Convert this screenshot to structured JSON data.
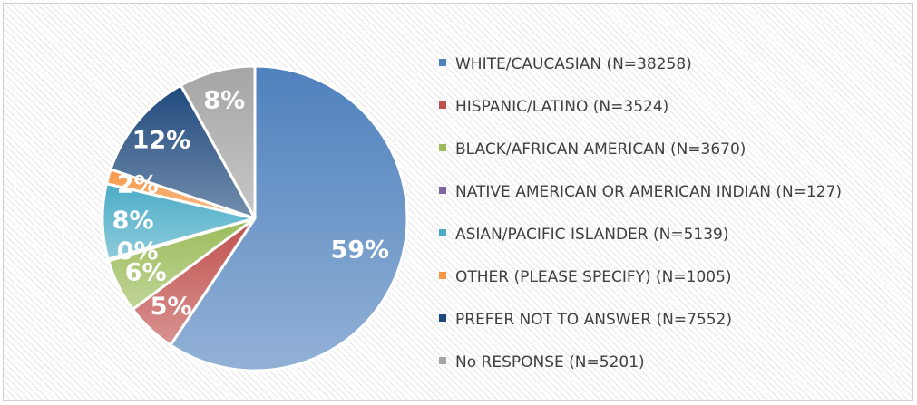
{
  "chart_data": {
    "type": "pie",
    "title": "",
    "legend_position": "right",
    "slices": [
      {
        "name": "WHITE/CAUCASIAN (N=38258)",
        "value": 38258,
        "label": "59%",
        "color": "#4f81bd"
      },
      {
        "name": "HISPANIC/LATINO (N=3524)",
        "value": 3524,
        "label": "5%",
        "color": "#c0504d"
      },
      {
        "name": "BLACK/AFRICAN AMERICAN (N=3670)",
        "value": 3670,
        "label": "6%",
        "color": "#9bbb59"
      },
      {
        "name": "NATIVE AMERICAN OR AMERICAN INDIAN (N=127)",
        "value": 127,
        "label": "0%",
        "color": "#8064a2"
      },
      {
        "name": "ASIAN/PACIFIC ISLANDER (N=5139)",
        "value": 5139,
        "label": "8%",
        "color": "#4bacc6"
      },
      {
        "name": "OTHER (PLEASE SPECIFY) (N=1005)",
        "value": 1005,
        "label": "2%",
        "color": "#f79646"
      },
      {
        "name": "PREFER NOT TO ANSWER (N=7552)",
        "value": 7552,
        "label": "12%",
        "color": "#1f497d"
      },
      {
        "name": "No RESPONSE (N=5201)",
        "value": 5201,
        "label": "8%",
        "color": "#a5a5a5"
      }
    ]
  }
}
